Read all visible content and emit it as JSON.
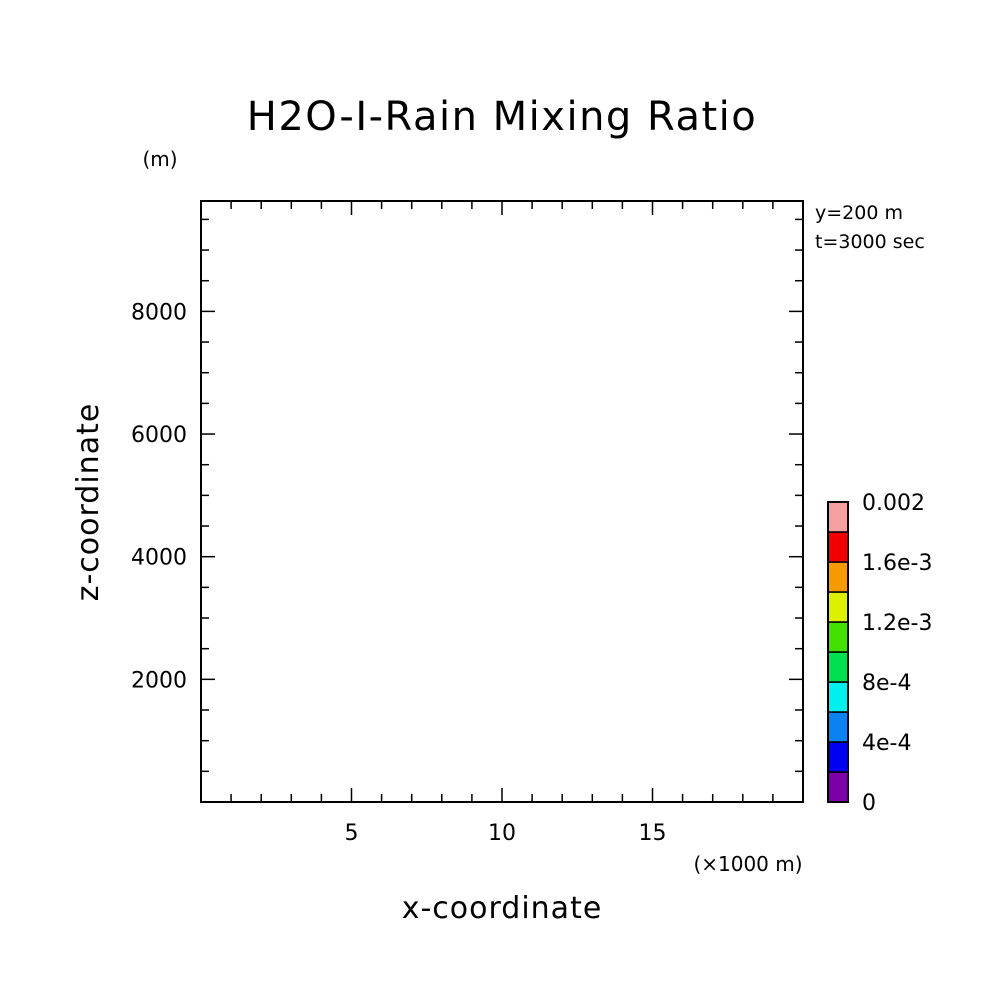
{
  "chart_data": {
    "type": "heatmap",
    "title": "H2O-I-Rain Mixing Ratio",
    "xlabel": "x-coordinate",
    "ylabel": "z-coordinate",
    "x_unit": "(×1000 m)",
    "y_unit": "(m)",
    "xlim": [
      0,
      20
    ],
    "ylim": [
      0,
      9800
    ],
    "x_ticks": [
      5,
      10,
      15
    ],
    "x_tick_labels": [
      "5",
      "10",
      "15"
    ],
    "y_ticks": [
      2000,
      4000,
      6000,
      8000
    ],
    "y_tick_labels": [
      "2000",
      "4000",
      "6000",
      "8000"
    ],
    "x_minor_step": 1,
    "y_minor_step": 500,
    "values": [],
    "annotations": [
      "y=200 m",
      "t=3000 sec"
    ],
    "colorbar": {
      "boundaries": [
        0,
        0.0002,
        0.0004,
        0.0006,
        0.0008,
        0.001,
        0.0012,
        0.0014,
        0.0016,
        0.0018,
        0.002
      ],
      "colors": [
        "#7B00A8",
        "#0000F0",
        "#0A82F0",
        "#00F0F0",
        "#00E050",
        "#44E000",
        "#DDF000",
        "#F59A00",
        "#F00000",
        "#F5A0A0"
      ],
      "labels": [
        {
          "value": 0,
          "text": "0"
        },
        {
          "value": 0.0004,
          "text": "4e-4"
        },
        {
          "value": 0.0008,
          "text": "8e-4"
        },
        {
          "value": 0.0012,
          "text": "1.2e-3"
        },
        {
          "value": 0.0016,
          "text": "1.6e-3"
        },
        {
          "value": 0.002,
          "text": "0.002"
        }
      ]
    }
  }
}
